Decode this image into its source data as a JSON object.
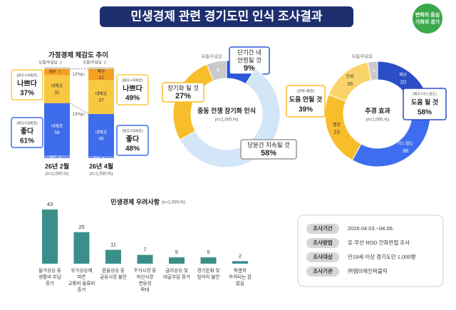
{
  "title": "민생경제 관련 경기도민 인식 조사결과",
  "logo": [
    "변화의 중심",
    "기회의 경기"
  ],
  "chart_data": [
    {
      "type": "stacked_bar",
      "title": "가정경제 체감도 추이",
      "categories": [
        "26년 2월",
        "26년 4월"
      ],
      "category_notes": [
        "(n=2,000,%)",
        "(n=1,000,%)"
      ],
      "series": [
        {
          "name": "매우",
          "color": "#7d97f0",
          "values": [
            3,
            2
          ]
        },
        {
          "name": "대체로",
          "color": "#3d6cec",
          "values": [
            58,
            46
          ]
        },
        {
          "name": "대체로",
          "color": "#f8c841",
          "values": [
            31,
            37
          ]
        },
        {
          "name": "매우",
          "color": "#f5a021",
          "values": [
            7,
            12
          ]
        },
        {
          "name": "모름/무응답",
          "color": "#d9d9d9",
          "values": [
            2,
            2
          ]
        }
      ],
      "groups": [
        {
          "note": "(매우+대체로)",
          "name": "나쁘다",
          "color": "#f8c841",
          "values": [
            37,
            49
          ],
          "value_labels": [
            "37%",
            "49%"
          ]
        },
        {
          "note": "(매우+대체로)",
          "name": "좋다",
          "color": "#3d6cec",
          "values": [
            61,
            48
          ],
          "value_labels": [
            "61%",
            "48%"
          ]
        }
      ],
      "changes": [
        "12%p↑",
        "13%p↓"
      ]
    },
    {
      "type": "donut",
      "title": "중동 전쟁 장기화 인식",
      "note": "(n=1,000,%)",
      "categories": [
        [
          "단기간 내",
          "안정될 것"
        ],
        [
          "당분간 지속될 것"
        ],
        [
          "장기화 될 것"
        ],
        [
          "모름/무응답"
        ]
      ],
      "values": [
        9,
        58,
        27,
        6
      ],
      "value_labels": [
        "9%",
        "58%",
        "27%",
        "6"
      ],
      "colors": [
        "#2b57d9",
        "#d3e6f8",
        "#f7bd2b",
        "#c9c9c9"
      ]
    },
    {
      "type": "donut",
      "title": "추경 효과",
      "note": "(n=1,000,%)",
      "categories": [
        [
          "매우"
        ],
        [
          "어느정도"
        ],
        [
          "별로"
        ],
        [
          "전혀"
        ],
        [
          "모름/무응답"
        ]
      ],
      "values": [
        20,
        38,
        23,
        16,
        3
      ],
      "colors": [
        "#2a4dc6",
        "#3d6ef0",
        "#f7bd2b",
        "#fad46a",
        "#c9c9c9"
      ],
      "groups": [
        {
          "note": "(매우+어느정도)",
          "name": "도움 될 것",
          "value": 58,
          "value_label": "58%",
          "color": "#2a4dc6"
        },
        {
          "note": "(전혀+별로)",
          "name": "도움 안될 것",
          "value": 39,
          "value_label": "39%",
          "color": "#f7bd2b"
        }
      ]
    },
    {
      "type": "bar",
      "title": "민생경제 우려사항",
      "note": "(n=1,000,%)",
      "color": "#3b8f88",
      "categories": [
        [
          "물가상승 등",
          "생활비 부담",
          "증가"
        ],
        [
          "유가상승에",
          "따른",
          "교통비 물류비",
          "증가"
        ],
        [
          "환율상승 등",
          "금융시장 불안"
        ],
        [
          "주식시장 등",
          "자산시장",
          "변동성",
          "확대"
        ],
        [
          "금리상승 및",
          "대출부담 증가"
        ],
        [
          "경기둔화 및",
          "일자리 불안"
        ],
        [
          "특별히",
          "우려되는 점",
          "없음"
        ]
      ],
      "values": [
        43,
        25,
        11,
        7,
        5,
        5,
        2
      ]
    }
  ],
  "survey_info": [
    {
      "label": "조사기간",
      "value": "2026.04.03.~04.06."
    },
    {
      "label": "조사방법",
      "value": "유·무선 RDD 전화면접 조사"
    },
    {
      "label": "조사대상",
      "value": "만18세 이상 경기도민 1,000명"
    },
    {
      "label": "조사기관",
      "value": "㈜엠브레인퍼블릭"
    }
  ]
}
